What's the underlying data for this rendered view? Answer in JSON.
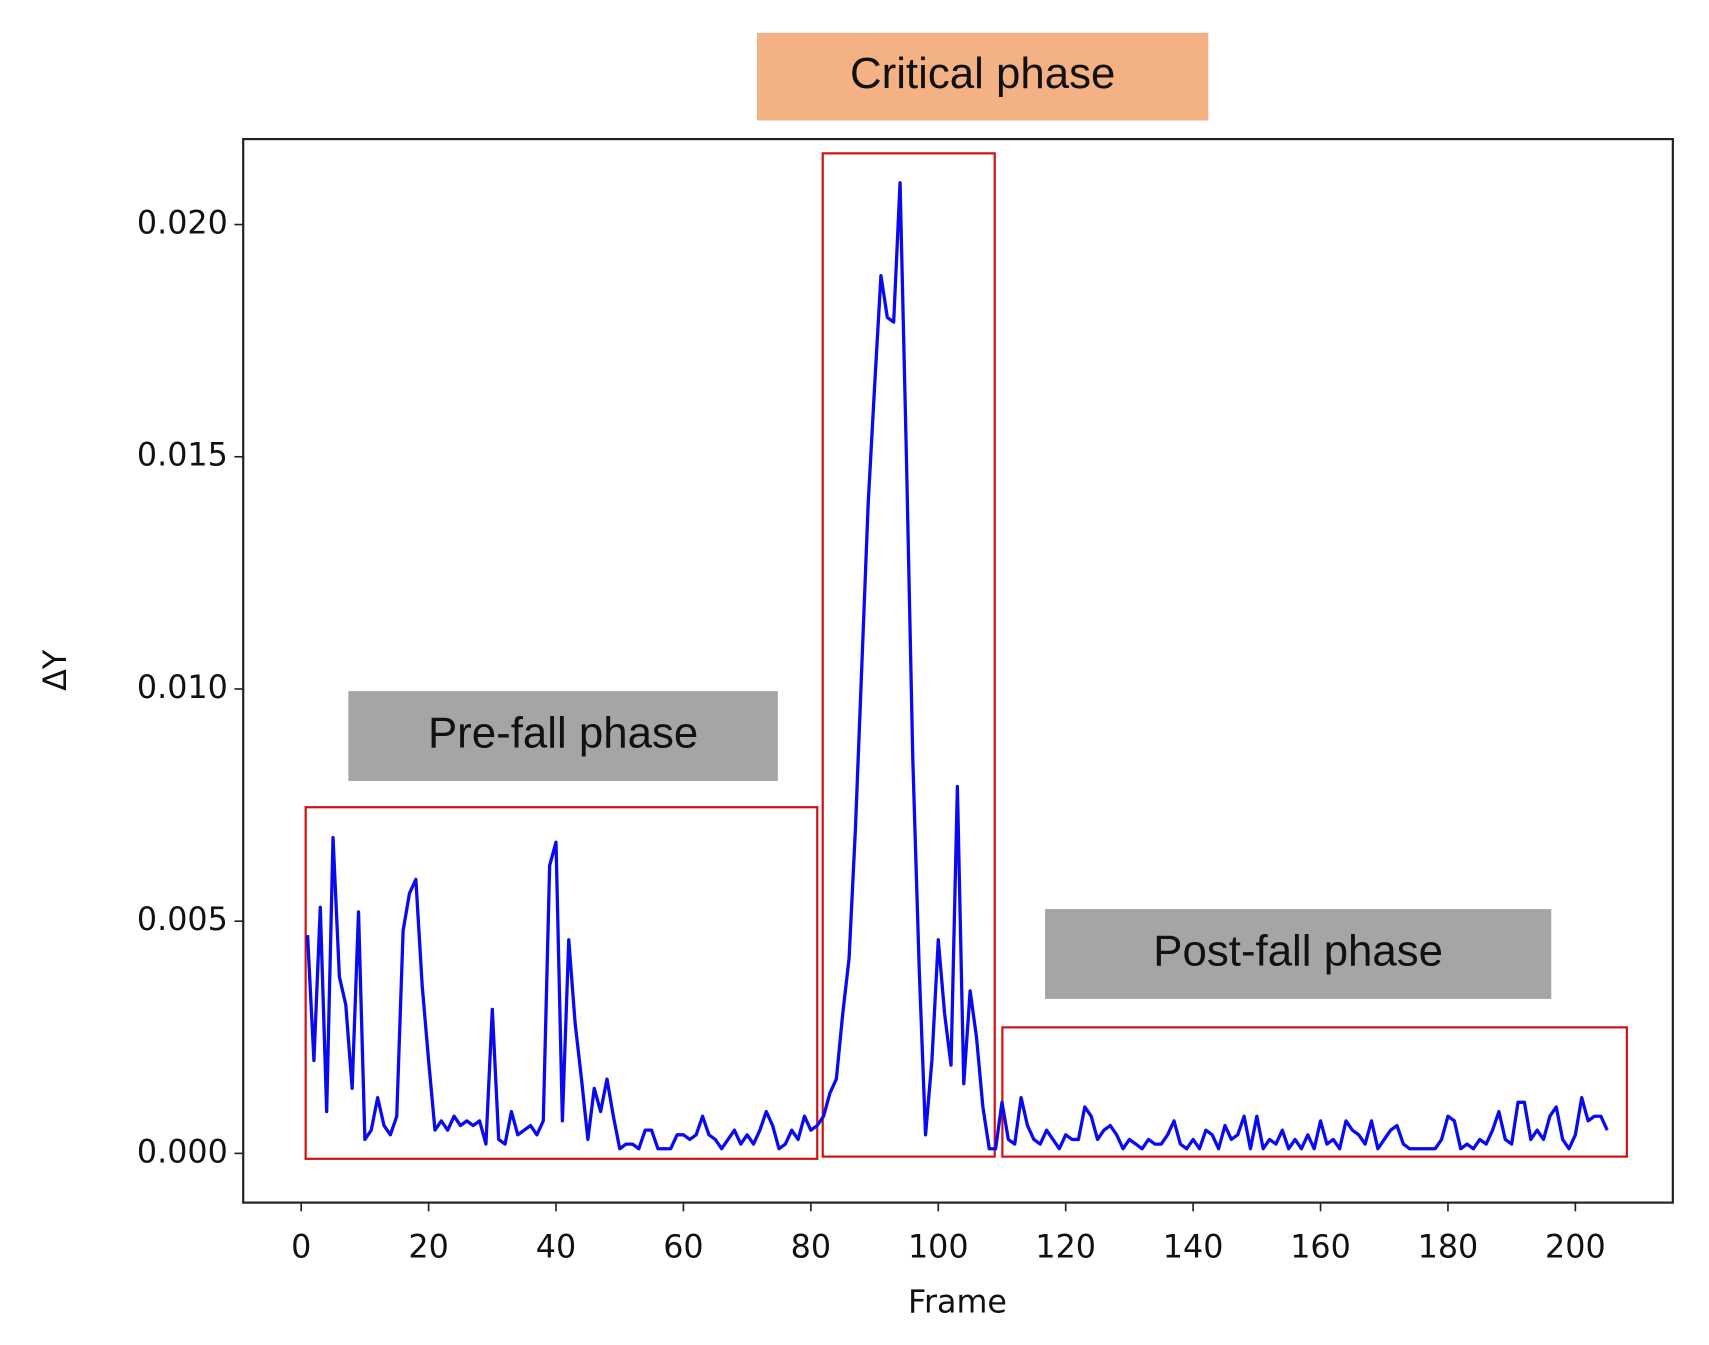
{
  "chart_data": {
    "type": "line",
    "xlabel": "Frame",
    "ylabel": "ΔY",
    "annotations": [
      "Critical phase",
      "Pre-fall phase",
      "Post-fall phase"
    ],
    "xlim": [
      -9.1,
      215.3
    ],
    "ylim": [
      -0.00106,
      0.02184
    ],
    "xticks": [
      0,
      20,
      40,
      60,
      80,
      100,
      120,
      140,
      160,
      180,
      200
    ],
    "yticks": [
      {
        "value": 0,
        "label": "0.000"
      },
      {
        "value": 0.005,
        "label": "0.005"
      },
      {
        "value": 0.01,
        "label": "0.010"
      },
      {
        "value": 0.015,
        "label": "0.015"
      },
      {
        "value": 0.02,
        "label": "0.020"
      }
    ],
    "grid": false,
    "x": [
      1,
      2,
      3,
      4,
      5,
      6,
      7,
      8,
      9,
      10,
      11,
      12,
      13,
      14,
      15,
      16,
      17,
      18,
      19,
      20,
      21,
      22,
      23,
      24,
      25,
      26,
      27,
      28,
      29,
      30,
      31,
      32,
      33,
      34,
      35,
      36,
      37,
      38,
      39,
      40,
      41,
      42,
      43,
      44,
      45,
      46,
      47,
      48,
      49,
      50,
      51,
      52,
      53,
      54,
      55,
      56,
      57,
      58,
      59,
      60,
      61,
      62,
      63,
      64,
      65,
      66,
      67,
      68,
      69,
      70,
      71,
      72,
      73,
      74,
      75,
      76,
      77,
      78,
      79,
      80,
      81,
      82,
      83,
      84,
      85,
      86,
      87,
      88,
      89,
      90,
      91,
      92,
      93,
      94,
      95,
      96,
      97,
      98,
      99,
      100,
      101,
      102,
      103,
      104,
      105,
      106,
      107,
      108,
      109,
      110,
      111,
      112,
      113,
      114,
      115,
      116,
      117,
      118,
      119,
      120,
      121,
      122,
      123,
      124,
      125,
      126,
      127,
      128,
      129,
      130,
      131,
      132,
      133,
      134,
      135,
      136,
      137,
      138,
      139,
      140,
      141,
      142,
      143,
      144,
      145,
      146,
      147,
      148,
      149,
      150,
      151,
      152,
      153,
      154,
      155,
      156,
      157,
      158,
      159,
      160,
      161,
      162,
      163,
      164,
      165,
      166,
      167,
      168,
      169,
      170,
      171,
      172,
      173,
      174,
      175,
      176,
      177,
      178,
      179,
      180,
      181,
      182,
      183,
      184,
      185,
      186,
      187,
      188,
      189,
      190,
      191,
      192,
      193,
      194,
      195,
      196,
      197,
      198,
      199,
      200,
      201,
      202,
      203,
      204,
      205
    ],
    "series": [
      {
        "color": "#0a0af0",
        "values": [
          0.0047,
          0.002,
          0.0053,
          0.0009,
          0.0068,
          0.0038,
          0.0032,
          0.0014,
          0.0052,
          0.0003,
          0.0005,
          0.0012,
          0.0006,
          0.0004,
          0.0008,
          0.0048,
          0.0056,
          0.0059,
          0.0036,
          0.002,
          0.0005,
          0.0007,
          0.0005,
          0.0008,
          0.0006,
          0.0007,
          0.0006,
          0.0007,
          0.0002,
          0.0031,
          0.0003,
          0.0002,
          0.0009,
          0.0004,
          0.0005,
          0.0006,
          0.0004,
          0.0007,
          0.0062,
          0.0067,
          0.0007,
          0.0046,
          0.0028,
          0.0016,
          0.0003,
          0.0014,
          0.0009,
          0.0016,
          0.0008,
          0.0001,
          0.0002,
          0.0002,
          0.0001,
          0.0005,
          0.0005,
          0.0001,
          0.0001,
          0.0001,
          0.0004,
          0.0004,
          0.0003,
          0.0004,
          0.0008,
          0.0004,
          0.0003,
          0.0001,
          0.0003,
          0.0005,
          0.0002,
          0.0004,
          0.0002,
          0.0005,
          0.0009,
          0.0006,
          0.0001,
          0.0002,
          0.0005,
          0.0003,
          0.0008,
          0.0005,
          0.0006,
          0.0008,
          0.0013,
          0.0016,
          0.003,
          0.0042,
          0.007,
          0.0105,
          0.014,
          0.0165,
          0.0189,
          0.018,
          0.0179,
          0.0209,
          0.015,
          0.0085,
          0.004,
          0.0004,
          0.002,
          0.0046,
          0.003,
          0.0019,
          0.0079,
          0.0015,
          0.0035,
          0.0025,
          0.001,
          0.0001,
          0.0001,
          0.0011,
          0.0003,
          0.0002,
          0.0012,
          0.0006,
          0.0003,
          0.0002,
          0.0005,
          0.0003,
          0.0001,
          0.0004,
          0.0003,
          0.0003,
          0.001,
          0.0008,
          0.0003,
          0.0005,
          0.0006,
          0.0004,
          0.0001,
          0.0003,
          0.0002,
          0.0001,
          0.0003,
          0.0002,
          0.0002,
          0.0004,
          0.0007,
          0.0002,
          0.0001,
          0.0003,
          0.0001,
          0.0005,
          0.0004,
          0.0001,
          0.0006,
          0.0003,
          0.0004,
          0.0008,
          0.0001,
          0.0008,
          0.0001,
          0.0003,
          0.0002,
          0.0005,
          0.0001,
          0.0003,
          0.0001,
          0.0004,
          0.0001,
          0.0007,
          0.0002,
          0.0003,
          0.0001,
          0.0007,
          0.0005,
          0.0004,
          0.0002,
          0.0007,
          0.0001,
          0.0003,
          0.0005,
          0.0006,
          0.0002,
          0.0001,
          0.0001,
          0.0001,
          0.0001,
          0.0001,
          0.0003,
          0.0008,
          0.0007,
          0.0001,
          0.0002,
          0.0001,
          0.0003,
          0.0002,
          0.0005,
          0.0009,
          0.0003,
          0.0002,
          0.0011,
          0.0011,
          0.0003,
          0.0005,
          0.0003,
          0.0008,
          0.001,
          0.0003,
          0.0001,
          0.0004,
          0.0012,
          0.0007,
          0.0008,
          0.0008,
          0.0005
        ]
      }
    ]
  }
}
